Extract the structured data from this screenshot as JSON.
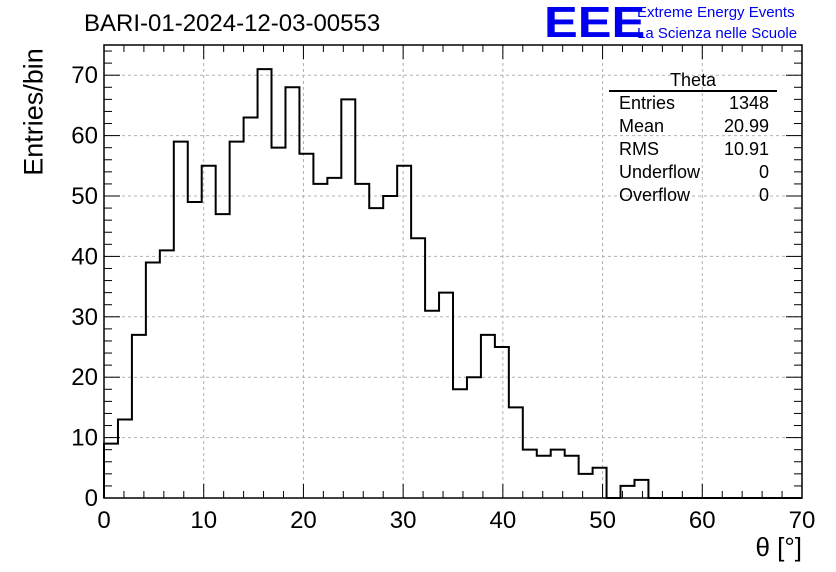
{
  "title": "BARI-01-2024-12-03-00553",
  "logo": {
    "mark": "EEE",
    "line1": "Extreme Energy Events",
    "line2": "La Scienza nelle Scuole",
    "color": "#0000ee"
  },
  "stats": {
    "name": "Theta",
    "rows": [
      {
        "label": "Entries",
        "value": "1348"
      },
      {
        "label": "Mean",
        "value": "20.99"
      },
      {
        "label": "RMS",
        "value": "10.91"
      },
      {
        "label": "Underflow",
        "value": "0"
      },
      {
        "label": "Overflow",
        "value": "0"
      }
    ]
  },
  "chart_data": {
    "type": "bar",
    "style": "step-histogram",
    "title": "BARI-01-2024-12-03-00553",
    "xlabel": "θ [°]",
    "ylabel": "Entries/bin",
    "xlim": [
      0,
      70
    ],
    "ylim": [
      0,
      75
    ],
    "bin_width": 1.4,
    "bin_start": 0,
    "xticks": [
      0,
      10,
      20,
      30,
      40,
      50,
      60,
      70
    ],
    "yticks": [
      0,
      10,
      20,
      30,
      40,
      50,
      60,
      70
    ],
    "grid": true,
    "values": [
      9,
      13,
      27,
      39,
      41,
      59,
      49,
      55,
      47,
      59,
      63,
      71,
      58,
      68,
      57,
      52,
      53,
      66,
      52,
      48,
      50,
      55,
      43,
      31,
      34,
      18,
      20,
      27,
      25,
      15,
      8,
      7,
      8,
      7,
      4,
      5,
      0,
      2,
      3,
      0,
      0,
      0,
      0,
      0,
      0,
      0,
      0,
      0,
      0,
      0
    ]
  }
}
